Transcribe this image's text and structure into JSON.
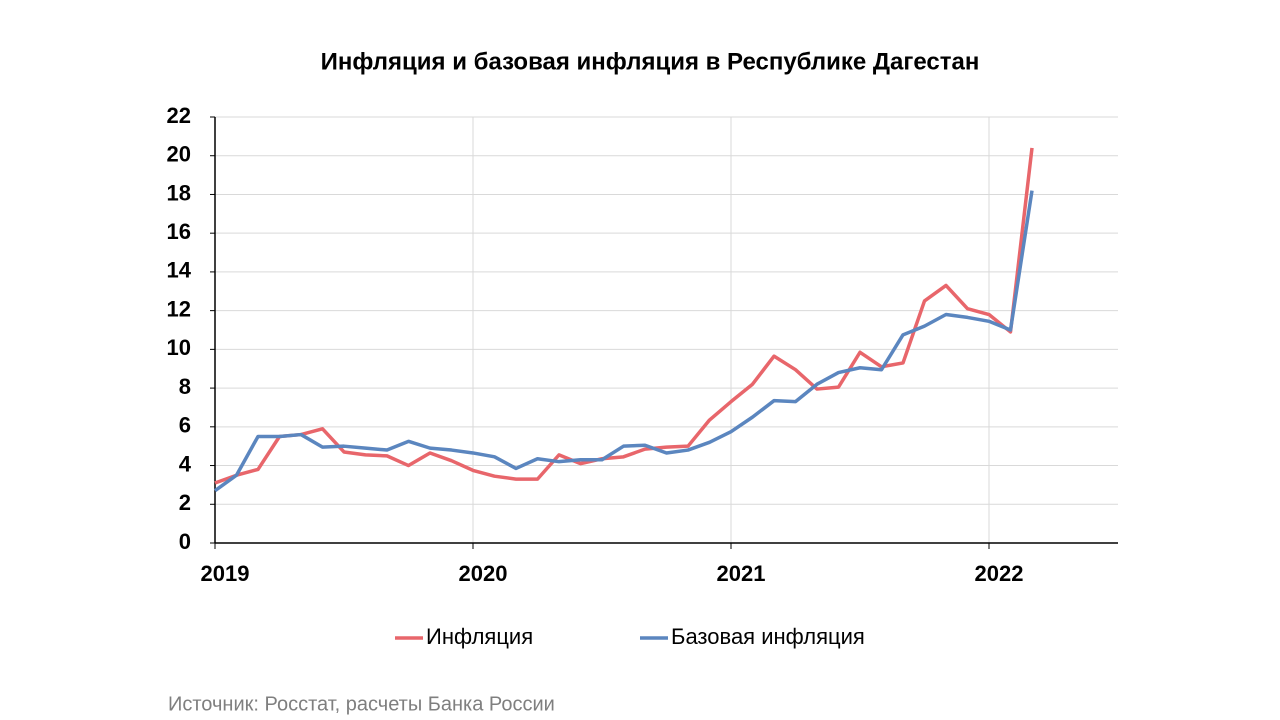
{
  "chart_data": {
    "type": "line",
    "title": "Инфляция и базовая инфляция в Республике Дагестан",
    "source": "Источник: Росстат, расчеты Банка России",
    "categories": [
      "2019",
      null,
      null,
      null,
      null,
      null,
      null,
      null,
      null,
      null,
      null,
      null,
      "2020",
      null,
      null,
      null,
      null,
      null,
      null,
      null,
      null,
      null,
      null,
      null,
      "2021",
      null,
      null,
      null,
      null,
      null,
      null,
      null,
      null,
      null,
      null,
      null,
      "2022",
      null,
      null
    ],
    "series": [
      {
        "name": "Инфляция",
        "color": "#e8666b",
        "values": [
          3.1,
          3.5,
          3.8,
          5.5,
          5.6,
          5.9,
          4.7,
          4.55,
          4.5,
          4.0,
          4.65,
          4.25,
          3.75,
          3.45,
          3.3,
          3.3,
          4.55,
          4.1,
          4.35,
          4.45,
          4.85,
          4.95,
          5.0,
          6.35,
          7.3,
          8.2,
          9.65,
          8.95,
          7.95,
          8.05,
          9.85,
          9.1,
          9.3,
          12.5,
          13.3,
          12.1,
          11.8,
          10.9,
          20.4
        ]
      },
      {
        "name": "Базовая инфляция",
        "color": "#5b86bf",
        "values": [
          2.7,
          3.5,
          5.5,
          5.5,
          5.6,
          4.95,
          5.0,
          4.9,
          4.8,
          5.25,
          4.9,
          4.8,
          4.65,
          4.45,
          3.85,
          4.35,
          4.2,
          4.3,
          4.3,
          5.0,
          5.05,
          4.65,
          4.8,
          5.2,
          5.75,
          6.5,
          7.35,
          7.3,
          8.2,
          8.8,
          9.05,
          8.95,
          10.75,
          11.2,
          11.8,
          11.65,
          11.45,
          11.0,
          18.2
        ]
      }
    ],
    "ylim": [
      0,
      22
    ],
    "yticks": [
      0,
      2,
      4,
      6,
      8,
      10,
      12,
      14,
      16,
      18,
      20,
      22
    ],
    "grid": true,
    "legend": "bottom"
  }
}
